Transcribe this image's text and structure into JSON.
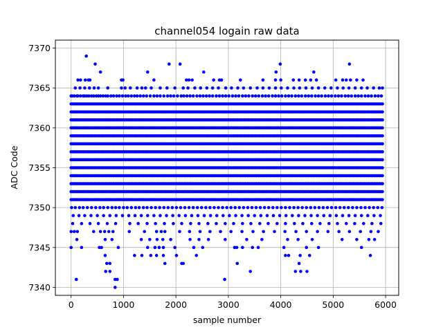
{
  "chart_data": {
    "type": "scatter",
    "title": "channel054 logain raw data",
    "xlabel": "sample number",
    "ylabel": "ADC Code",
    "xlim": [
      -300,
      6250
    ],
    "ylim": [
      7339,
      7371
    ],
    "xticks": [
      0,
      1000,
      2000,
      3000,
      4000,
      5000,
      6000
    ],
    "yticks": [
      7340,
      7345,
      7350,
      7355,
      7360,
      7365,
      7370
    ],
    "xtick_labels": [
      "0",
      "1000",
      "2000",
      "3000",
      "4000",
      "5000",
      "6000"
    ],
    "ytick_labels": [
      "7340",
      "7345",
      "7350",
      "7355",
      "7360",
      "7365",
      "7370"
    ],
    "grid": true,
    "marker_color": "#0000ff",
    "n_samples": 5950,
    "series": [
      {
        "dense_levels": [
          {
            "y": 7351,
            "x": [
              0,
              5950
            ]
          },
          {
            "y": 7352,
            "x": [
              0,
              5950
            ]
          },
          {
            "y": 7353,
            "x": [
              0,
              5950
            ]
          },
          {
            "y": 7354,
            "x": [
              0,
              5950
            ]
          },
          {
            "y": 7355,
            "x": [
              0,
              5950
            ]
          },
          {
            "y": 7356,
            "x": [
              0,
              5950
            ]
          },
          {
            "y": 7357,
            "x": [
              0,
              5950
            ]
          },
          {
            "y": 7358,
            "x": [
              0,
              5950
            ]
          },
          {
            "y": 7359,
            "x": [
              0,
              5950
            ]
          },
          {
            "y": 7360,
            "x": [
              0,
              5950
            ]
          },
          {
            "y": 7361,
            "x": [
              0,
              5950
            ]
          },
          {
            "y": 7362,
            "x": [
              0,
              5950
            ]
          },
          {
            "y": 7363,
            "x": [
              0,
              5950
            ]
          }
        ],
        "sparse_levels": [
          {
            "y": 7364,
            "x": [
              0,
              20,
              60,
              110,
              130,
              180,
              230,
              260,
              300,
              340,
              390,
              430,
              480,
              520,
              560,
              610,
              660,
              700,
              760,
              810,
              870,
              920,
              980,
              1040,
              1090,
              1150,
              1210,
              1260,
              1320,
              1380,
              1440,
              1510,
              1580,
              1640,
              1700,
              1770,
              1840,
              1900,
              1960,
              2030,
              2100,
              2150,
              2210,
              2270,
              2330,
              2400,
              2460,
              2520,
              2580,
              2640,
              2700,
              2770,
              2830,
              2890,
              2950,
              3010,
              3080,
              3140,
              3200,
              3270,
              3330,
              3390,
              3460,
              3520,
              3580,
              3650,
              3710,
              3770,
              3840,
              3900,
              3960,
              4020,
              4090,
              4150,
              4210,
              4280,
              4340,
              4400,
              4470,
              4530,
              4590,
              4660,
              4720,
              4780,
              4850,
              4910,
              4970,
              5040,
              5100,
              5160,
              5230,
              5290,
              5350,
              5420,
              5480,
              5540,
              5610,
              5670,
              5730,
              5800,
              5860,
              5920
            ]
          },
          {
            "y": 7365,
            "x": [
              80,
              170,
              260,
              350,
              440,
              520,
              700,
              960,
              1030,
              1130,
              1260,
              1350,
              1420,
              1530,
              1700,
              1830,
              1980,
              2140,
              2230,
              2360,
              2470,
              2590,
              2700,
              2810,
              2950,
              3060,
              3180,
              3290,
              3420,
              3550,
              3660,
              3780,
              3900,
              4010,
              4130,
              4250,
              4360,
              4480,
              4600,
              4720,
              4840,
              4960,
              5080,
              5190,
              5300,
              5420,
              5540,
              5650,
              5770,
              5880,
              5940
            ]
          },
          {
            "y": 7366,
            "x": [
              130,
              180,
              270,
              330,
              360,
              960,
              990,
              1580,
              2200,
              2250,
              2310,
              2720,
              2830,
              2870,
              3230,
              3660,
              3900,
              4000,
              4240,
              4350,
              4470,
              4570,
              4680,
              5050,
              5180,
              5250,
              5330,
              5450,
              5570
            ]
          },
          {
            "y": 7367,
            "x": [
              560,
              1460,
              2530,
              3910,
              4630
            ]
          },
          {
            "y": 7368,
            "x": [
              460,
              1870,
              2080,
              3990,
              5310
            ]
          },
          {
            "y": 7369,
            "x": [
              290
            ]
          },
          {
            "y": 7350,
            "x": [
              10,
              80,
              160,
              230,
              310,
              390,
              470,
              550,
              620,
              700,
              780,
              850,
              920,
              1000,
              1070,
              1150,
              1230,
              1300,
              1380,
              1450,
              1530,
              1610,
              1690,
              1770,
              1850,
              1930,
              2010,
              2090,
              2170,
              2250,
              2330,
              2410,
              2490,
              2570,
              2650,
              2730,
              2810,
              2890,
              2970,
              3050,
              3130,
              3210,
              3290,
              3370,
              3450,
              3530,
              3610,
              3690,
              3770,
              3850,
              3930,
              4010,
              4090,
              4170,
              4250,
              4330,
              4410,
              4490,
              4570,
              4650,
              4730,
              4810,
              4890,
              4970,
              5050,
              5130,
              5210,
              5290,
              5370,
              5450,
              5530,
              5610,
              5690,
              5770,
              5850,
              5930
            ]
          },
          {
            "y": 7349,
            "x": [
              40,
              150,
              260,
              380,
              500,
              620,
              740,
              860,
              980,
              1100,
              1220,
              1340,
              1460,
              1580,
              1700,
              1820,
              1940,
              2060,
              2180,
              2300,
              2420,
              2540,
              2660,
              2780,
              2900,
              3020,
              3140,
              3260,
              3380,
              3500,
              3620,
              3740,
              3860,
              3980,
              4100,
              4220,
              4340,
              4460,
              4580,
              4700,
              4820,
              4940,
              5060,
              5180,
              5300,
              5420,
              5540,
              5660,
              5780,
              5900
            ]
          },
          {
            "y": 7348,
            "x": [
              30,
              200,
              360,
              520,
              690,
              850,
              1120,
              1280,
              1450,
              1610,
              1780,
              1950,
              2110,
              2280,
              2440,
              2610,
              2770,
              2940,
              3100,
              3270,
              3430,
              3600,
              3760,
              3930,
              4090,
              4260,
              4420,
              4590,
              4750,
              4920,
              5080,
              5250,
              5410,
              5580,
              5740,
              5910
            ]
          },
          {
            "y": 7347,
            "x": [
              0,
              60,
              120,
              430,
              560,
              640,
              720,
              800,
              1110,
              1400,
              1630,
              1720,
              1790,
              2070,
              2260,
              2460,
              2650,
              2850,
              3050,
              3260,
              3470,
              3670,
              3880,
              4080,
              4290,
              4490,
              4700,
              4900,
              5110,
              5310,
              5520,
              5720,
              5860
            ]
          },
          {
            "y": 7346,
            "x": [
              110,
              650,
              780,
              1340,
              1500,
              1640,
              1750,
              1900,
              2270,
              2440,
              2620,
              2940,
              3350,
              3640,
              4130,
              4330,
              4600,
              5170,
              5450,
              5680,
              5790
            ]
          },
          {
            "y": 7345,
            "x": [
              0,
              200,
              540,
              580,
              900,
              1460,
              1600,
              1680,
              1760,
              1980,
              2340,
              2510,
              3120,
              3160,
              3270,
              3460,
              3570,
              4060,
              4490,
              4720,
              5540
            ]
          },
          {
            "y": 7344,
            "x": [
              650,
              1210,
              1350,
              1520,
              1630,
              1760,
              2010,
              2390,
              4090,
              4150,
              4370,
              4550,
              5710
            ]
          },
          {
            "y": 7343,
            "x": [
              680,
              740,
              1790,
              2110,
              2140,
              3170,
              4350
            ]
          },
          {
            "y": 7342,
            "x": [
              660,
              740,
              3420,
              4280,
              4380,
              4500
            ]
          },
          {
            "y": 7341,
            "x": [
              100,
              840,
              880,
              2930
            ]
          },
          {
            "y": 7340,
            "x": [
              840
            ]
          }
        ]
      }
    ]
  }
}
